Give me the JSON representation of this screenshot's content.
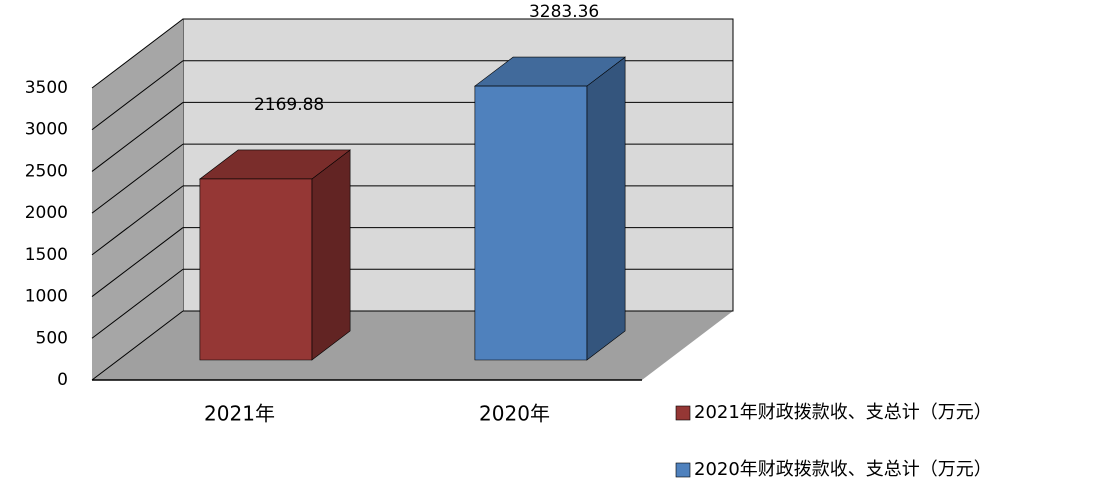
{
  "chart_data": {
    "type": "bar3d",
    "categories": [
      "2021年",
      "2020年"
    ],
    "series": [
      {
        "name": "2021年财政拨款收、支总计（万元）",
        "color": "#953735",
        "values": [
          2169.88,
          null
        ]
      },
      {
        "name": "2020年财政拨款收、支总计（万元）",
        "color": "#4f81bd",
        "values": [
          null,
          3283.36
        ]
      }
    ],
    "ylim": [
      0,
      3500
    ],
    "yticks": [
      0,
      500,
      1000,
      1500,
      2000,
      2500,
      3000,
      3500
    ],
    "grid": true
  }
}
